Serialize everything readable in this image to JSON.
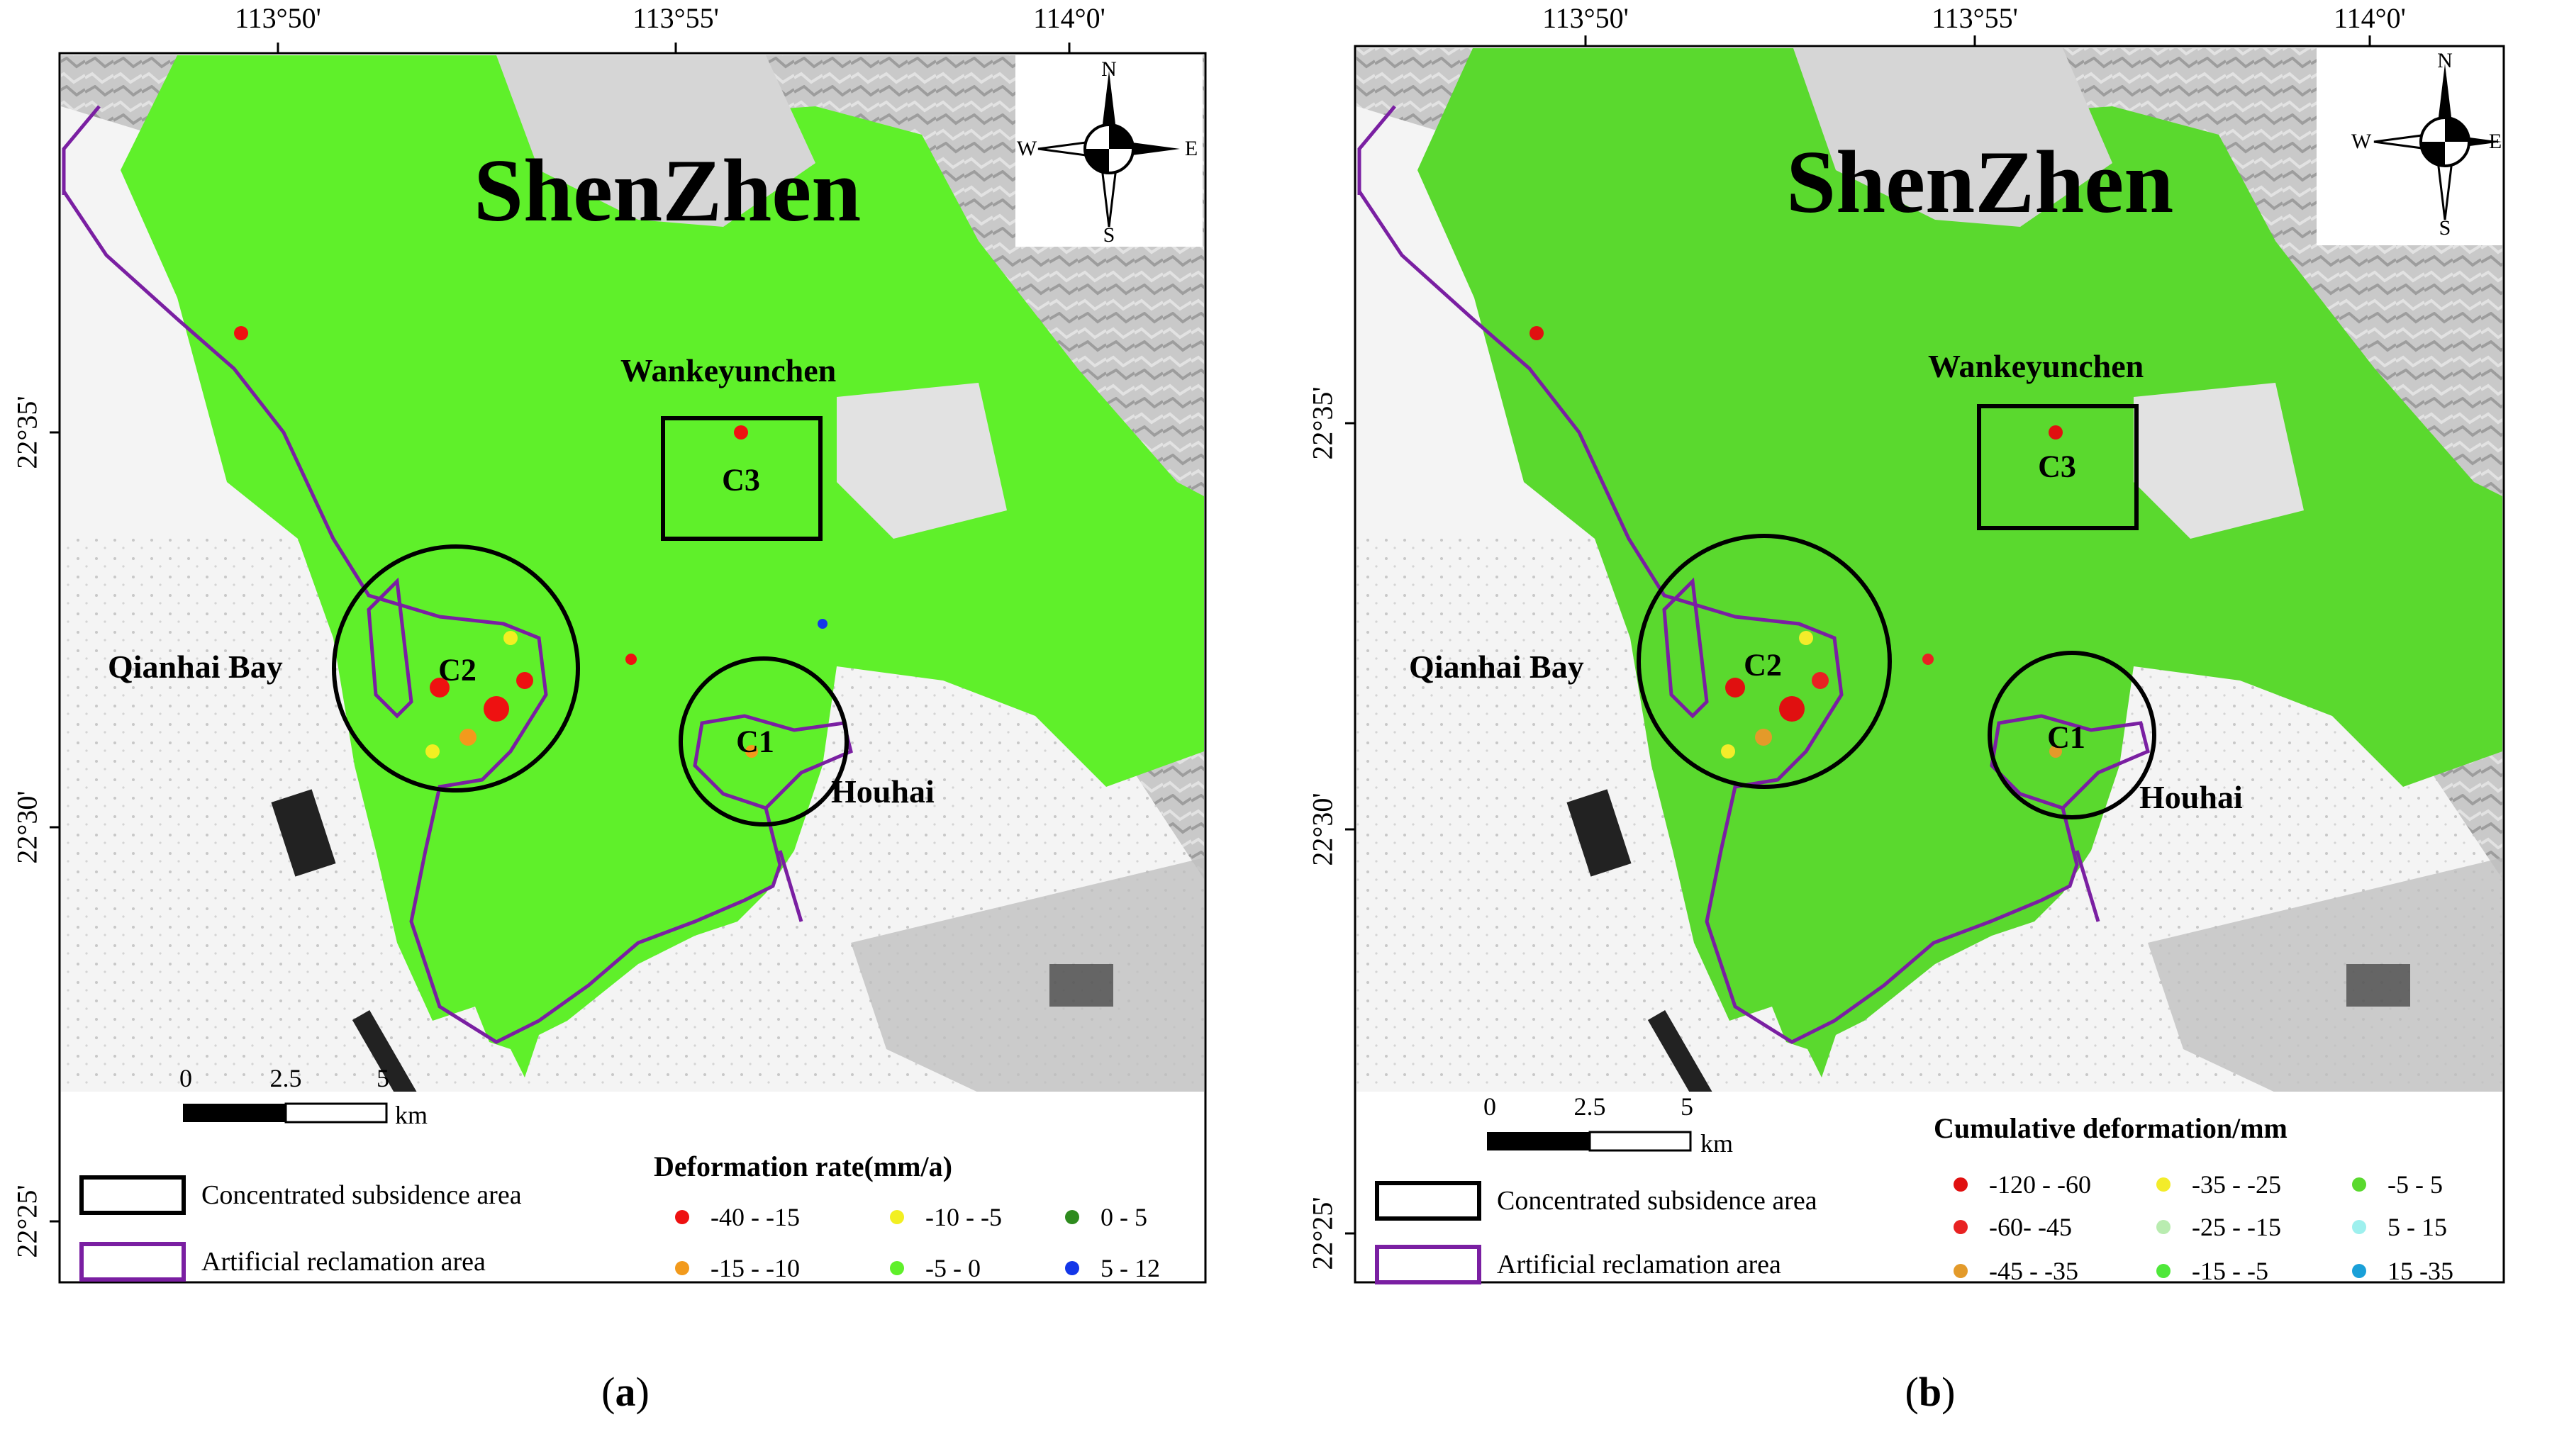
{
  "panels": [
    {
      "id": "a",
      "caption_open": "(",
      "caption_letter": "a",
      "caption_close": ")",
      "city": "ShenZhen",
      "places": {
        "wankeyunchen": "Wankeyunchen",
        "qianhai": "Qianhai Bay",
        "houhai": "Houhai"
      },
      "zones": {
        "c1": "C1",
        "c2": "C2",
        "c3": "C3"
      },
      "compass": {
        "n": "N",
        "s": "S",
        "w": "W",
        "e": "E"
      },
      "lon_ticks": [
        "113°50'",
        "113°55'",
        "114°0'"
      ],
      "lat_ticks": [
        "22°35'",
        "22°30'",
        "22°25'"
      ],
      "scale": {
        "labels": [
          "0",
          "2.5",
          "5"
        ],
        "unit": "km"
      },
      "legend": {
        "concentrated": "Concentrated subsidence area",
        "artificial": "Artificial reclamation area",
        "title": "Deformation rate(mm/a)",
        "classes": [
          {
            "label": "-40 - -15",
            "color": "#ee1111"
          },
          {
            "label": "-15 - -10",
            "color": "#f29a1c"
          },
          {
            "label": "-10 - -5",
            "color": "#f2ef22"
          },
          {
            "label": "-5 - 0",
            "color": "#5ff02a"
          },
          {
            "label": "0 - 5",
            "color": "#2e8b1e"
          },
          {
            "label": "5 - 12",
            "color": "#1336e8"
          }
        ]
      }
    },
    {
      "id": "b",
      "caption_open": "(",
      "caption_letter": "b",
      "caption_close": ")",
      "city": "ShenZhen",
      "places": {
        "wankeyunchen": "Wankeyunchen",
        "qianhai": "Qianhai Bay",
        "houhai": "Houhai"
      },
      "zones": {
        "c1": "C1",
        "c2": "C2",
        "c3": "C3"
      },
      "compass": {
        "n": "N",
        "s": "S",
        "w": "W",
        "e": "E"
      },
      "lon_ticks": [
        "113°50'",
        "113°55'",
        "114°0'"
      ],
      "lat_ticks": [
        "22°35'",
        "22°30'",
        "22°25'"
      ],
      "scale": {
        "labels": [
          "0",
          "2.5",
          "5"
        ],
        "unit": "km"
      },
      "legend": {
        "concentrated": "Concentrated subsidence area",
        "artificial": "Artificial reclamation area",
        "title": "Cumulative deformation/mm",
        "classes": [
          {
            "label": "-120 - -60",
            "color": "#e01010"
          },
          {
            "label": "-60- -45",
            "color": "#e82222"
          },
          {
            "label": "-45 - -35",
            "color": "#e39a2a"
          },
          {
            "label": "-35 - -25",
            "color": "#f3ec2a"
          },
          {
            "label": "-25 - -15",
            "color": "#b9ecb0"
          },
          {
            "label": "-15 - -5",
            "color": "#4fe83a"
          },
          {
            "label": "-5 - 5",
            "color": "#5ad92e"
          },
          {
            "label": "5 - 15",
            "color": "#9ef0ee"
          },
          {
            "label": "15 -35",
            "color": "#1aa0d8"
          }
        ]
      }
    }
  ]
}
